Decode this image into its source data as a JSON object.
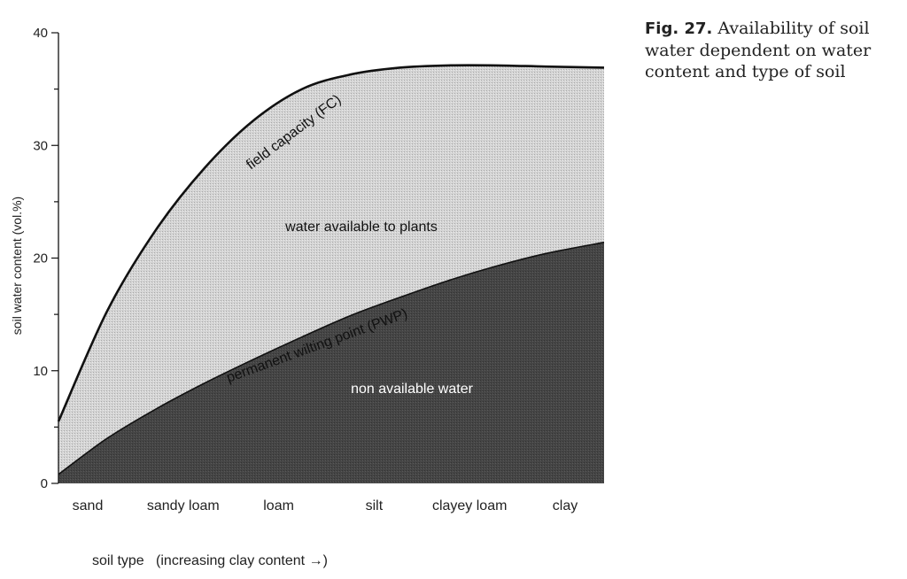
{
  "caption": {
    "label": "Fig. 27.",
    "text": "Availability of soil water dependent on water content and type of soil"
  },
  "chart_data": {
    "type": "area",
    "title": "",
    "xlabel": "soil type   (increasing clay content →)",
    "ylabel": "soil water content (vol.%)",
    "ylim": [
      0,
      40
    ],
    "yticks": [
      0,
      10,
      20,
      30,
      40
    ],
    "grid": false,
    "categories": [
      "sand",
      "sandy loam",
      "loam",
      "silt",
      "clayey loam",
      "clay"
    ],
    "series": [
      {
        "name": "field capacity (FC)",
        "x": [
          0,
          0.5,
          1,
          1.5,
          2,
          2.5,
          3,
          3.5,
          4,
          4.5,
          5,
          5.6
        ],
        "values": [
          5.5,
          15.3,
          22.5,
          28.0,
          32.2,
          35.0,
          36.3,
          36.9,
          37.1,
          37.1,
          37.0,
          36.9
        ]
      },
      {
        "name": "permanent wilting point (PWP)",
        "x": [
          0,
          0.5,
          1,
          1.5,
          2,
          2.5,
          3,
          3.5,
          4,
          4.5,
          5,
          5.6
        ],
        "values": [
          0.8,
          4.0,
          6.6,
          8.9,
          11.0,
          13.0,
          14.9,
          16.5,
          18.0,
          19.3,
          20.4,
          21.4
        ]
      }
    ],
    "annotations": [
      "water available to plants",
      "non available water"
    ],
    "colors": {
      "available": "#d4d4d4",
      "non_available": "#454545",
      "line": "#111111"
    }
  }
}
